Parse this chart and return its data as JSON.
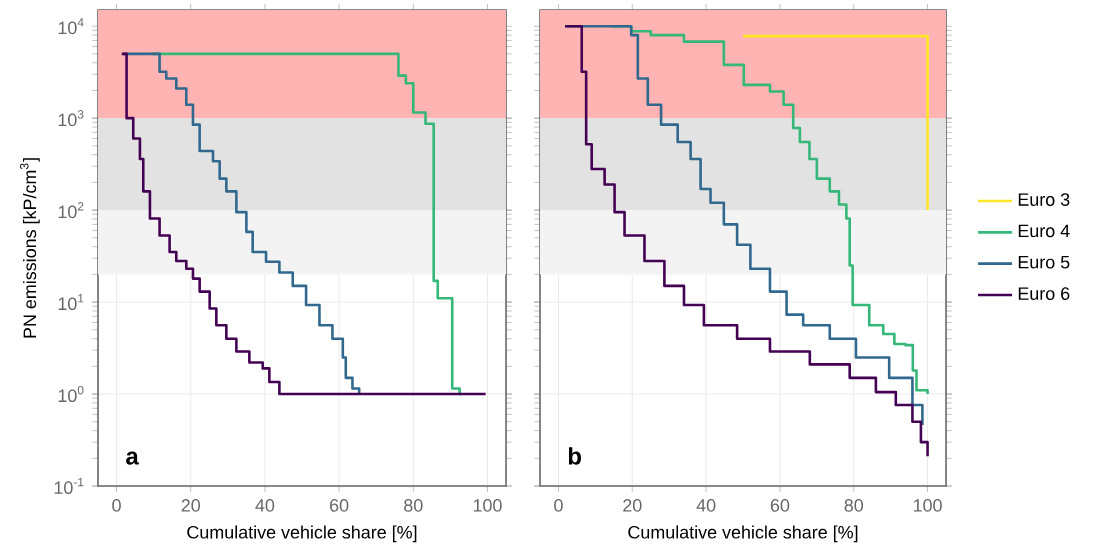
{
  "chart_data": [
    {
      "type": "step",
      "xlabel": "Cumulative vehicle share [%]",
      "ylabel": "PN emissions [kP/cm$^{3}$]",
      "log": "y",
      "grid": true,
      "legend": false,
      "xlim": [
        -5,
        105
      ],
      "xticks": [
        0,
        20,
        40,
        60,
        80,
        100
      ],
      "ylim": [
        0.1,
        15000
      ],
      "yticks": [
        {
          "value": 0.1,
          "label": "10$^{-1}$"
        },
        {
          "value": 1,
          "label": "10$^{0}$"
        },
        {
          "value": 10,
          "label": "10$^{1}$"
        },
        {
          "value": 100,
          "label": "10$^{2}$"
        },
        {
          "value": 1000,
          "label": "10$^{3}$"
        },
        {
          "value": 10000,
          "label": "10$^{4}$"
        }
      ],
      "bands": [
        {
          "axis": "y",
          "from": 1000,
          "to": 15000,
          "color": "#ffb3b3"
        },
        {
          "axis": "y",
          "from": 100,
          "to": 1000,
          "color": "#e2e2e2"
        },
        {
          "axis": "y",
          "from": 20,
          "to": 100,
          "color": "#f3f3f3"
        }
      ],
      "annotations": [
        "a"
      ],
      "series": [
        {
          "color": "#35b779",
          "x": [
            9.5,
            76,
            78,
            80,
            83.3,
            85.5,
            86.6,
            90.5,
            92.5,
            93
          ],
          "values": [
            5000,
            2900,
            2400,
            1150,
            870,
            17,
            11,
            1.15,
            1,
            1
          ]
        },
        {
          "color": "#31688e",
          "x": [
            1.8,
            10.2,
            11.6,
            13.4,
            16.1,
            18.8,
            20.6,
            22.4,
            26,
            27.8,
            29.6,
            32.3,
            35,
            36.7,
            40.3,
            43.9,
            47.5,
            51.1,
            54.7,
            58.2,
            61,
            61.8,
            63.6,
            65.4
          ],
          "values": [
            5000,
            5000,
            3200,
            2700,
            2100,
            1400,
            850,
            440,
            340,
            220,
            160,
            95,
            58,
            35,
            27.5,
            21,
            15,
            9.3,
            5.6,
            4,
            2.5,
            1.5,
            1.15,
            1
          ]
        },
        {
          "color": "#440154",
          "x": [
            1.4,
            2.7,
            4.5,
            6.3,
            7.2,
            9,
            11.6,
            14.3,
            16.1,
            18.8,
            20.6,
            22.4,
            25.1,
            26.9,
            29.6,
            32.3,
            35.8,
            39.4,
            41.2,
            43.9,
            99.5
          ],
          "values": [
            5000,
            1000,
            600,
            360,
            160,
            81,
            53,
            35,
            28,
            23,
            18,
            13,
            8.5,
            5.6,
            4,
            2.9,
            2.2,
            1.9,
            1.35,
            1,
            1
          ]
        }
      ]
    },
    {
      "type": "step",
      "xlabel": "Cumulative vehicle share [%]",
      "log": "y",
      "grid": true,
      "legend": "right",
      "tick_labels": "x",
      "xlim": [
        -5,
        105
      ],
      "xticks": [
        0,
        20,
        40,
        60,
        80,
        100
      ],
      "ylim": [
        0.1,
        15000
      ],
      "yticks": [
        {
          "value": 0.1,
          "label": null
        },
        {
          "value": 1,
          "label": null
        },
        {
          "value": 10,
          "label": null
        },
        {
          "value": 100,
          "label": null
        },
        {
          "value": 1000,
          "label": null
        },
        {
          "value": 10000,
          "label": null
        }
      ],
      "bands": [
        {
          "axis": "y",
          "from": 1000,
          "to": 15000,
          "color": "#ffb3b3"
        },
        {
          "axis": "y",
          "from": 100,
          "to": 1000,
          "color": "#e2e2e2"
        },
        {
          "axis": "y",
          "from": 20,
          "to": 100,
          "color": "#f3f3f3"
        }
      ],
      "annotations": [
        "b"
      ],
      "series": [
        {
          "name": "Euro 3",
          "color": "#fde725",
          "x": [
            50,
            100,
            100
          ],
          "values": [
            7800,
            7800,
            100
          ]
        },
        {
          "name": "Euro 4",
          "color": "#35b779",
          "x": [
            14.3,
            19.7,
            25,
            34,
            44.8,
            50.2,
            57.3,
            61,
            63.6,
            65.4,
            68,
            70,
            73.5,
            76,
            78,
            78.9,
            79.7,
            84.2,
            88,
            91,
            94,
            96,
            97,
            100
          ],
          "values": [
            10000,
            8800,
            8000,
            6800,
            3800,
            2300,
            1950,
            1400,
            780,
            550,
            360,
            220,
            160,
            115,
            81,
            25,
            9.3,
            5.6,
            4.5,
            3.5,
            3.4,
            1.8,
            1.1,
            1
          ]
        },
        {
          "name": "Euro 5",
          "color": "#31688e",
          "x": [
            1.8,
            13.4,
            19.7,
            21.5,
            24.2,
            27.8,
            32.3,
            35.8,
            38.5,
            41.2,
            44.8,
            48.4,
            52,
            57.3,
            61.8,
            66.3,
            73.5,
            80.6,
            89.6,
            95.9,
            98.6
          ],
          "values": [
            10000,
            10000,
            8000,
            2700,
            1400,
            850,
            550,
            360,
            170,
            120,
            70,
            42,
            23,
            13,
            7.3,
            5.6,
            4,
            2.5,
            1.5,
            0.76,
            0.46
          ]
        },
        {
          "name": "Euro 6",
          "color": "#440154",
          "x": [
            1.8,
            5,
            6.3,
            7.5,
            9,
            12.5,
            15.2,
            17.9,
            23.3,
            28.7,
            34,
            39.4,
            48.4,
            57.3,
            68.1,
            78.9,
            86,
            91.4,
            95.9,
            98.2,
            100
          ],
          "values": [
            10000,
            10000,
            3200,
            520,
            280,
            190,
            95,
            53,
            28,
            15,
            9.3,
            5.6,
            4,
            2.9,
            2.1,
            1.5,
            1.05,
            0.76,
            0.5,
            0.3,
            0.21
          ]
        }
      ]
    }
  ]
}
